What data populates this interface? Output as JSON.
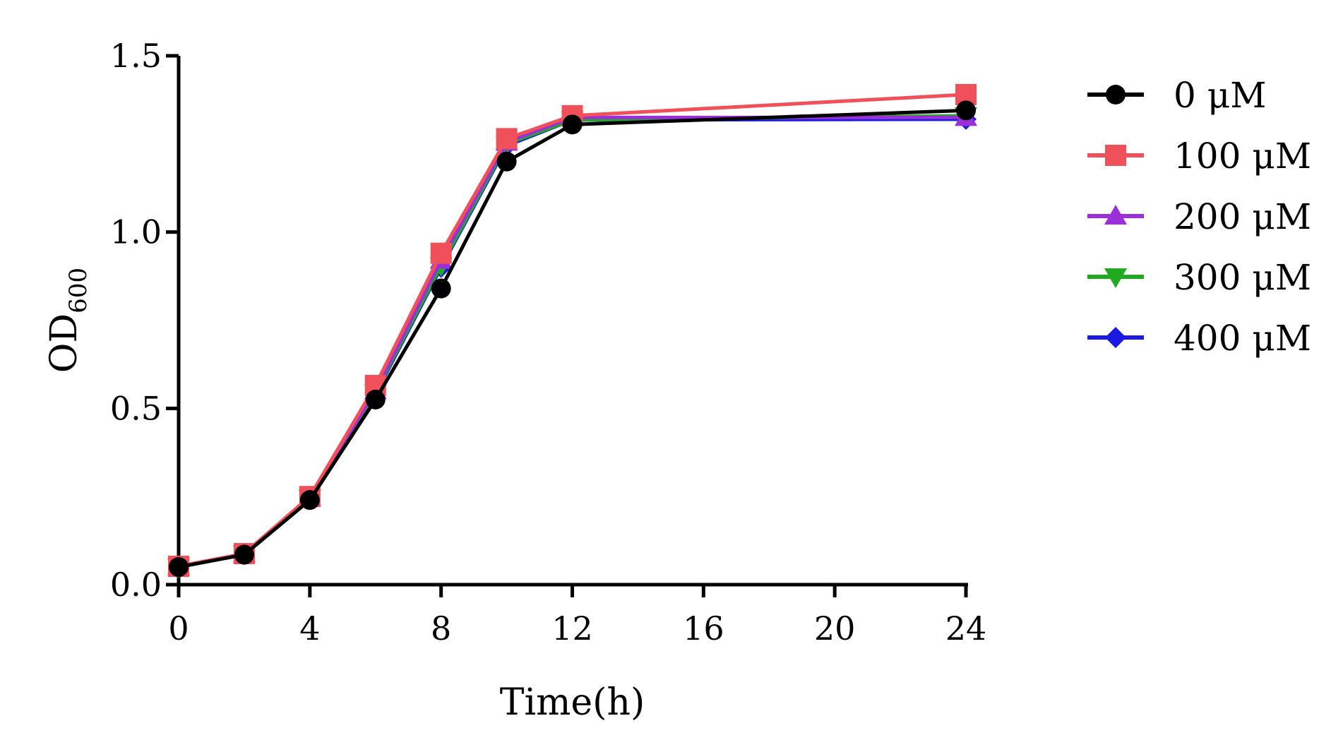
{
  "chart_data": {
    "type": "line",
    "xlabel": "Time(h)",
    "ylabel": {
      "main": "OD",
      "subscript": "600"
    },
    "xlim": [
      0,
      24
    ],
    "ylim": [
      0,
      1.5
    ],
    "xticks": [
      0,
      4,
      8,
      12,
      16,
      20,
      24
    ],
    "xtick_labels": [
      "0",
      "4",
      "8",
      "12",
      "16",
      "20",
      "24"
    ],
    "yticks": [
      0,
      0.5,
      1.0,
      1.5
    ],
    "ytick_labels": [
      "0.0",
      "0.5",
      "1.0",
      "1.5"
    ],
    "grid": false,
    "legend_position": "right",
    "x": [
      0,
      2,
      4,
      6,
      8,
      10,
      12,
      24
    ],
    "series": [
      {
        "name": "0 μM",
        "color": "#000000",
        "marker": "circle",
        "values": [
          0.05,
          0.085,
          0.24,
          0.525,
          0.84,
          1.2,
          1.305,
          1.345
        ]
      },
      {
        "name": "100 μM",
        "color": "#f0505a",
        "marker": "square",
        "values": [
          0.052,
          0.088,
          0.25,
          0.565,
          0.94,
          1.265,
          1.33,
          1.39
        ]
      },
      {
        "name": "200 μM",
        "color": "#9b30d9",
        "marker": "triangle-up",
        "values": [
          0.05,
          0.087,
          0.247,
          0.55,
          0.92,
          1.255,
          1.325,
          1.325
        ]
      },
      {
        "name": "300 μM",
        "color": "#1faa1f",
        "marker": "triangle-down",
        "values": [
          0.05,
          0.086,
          0.245,
          0.545,
          0.905,
          1.25,
          1.318,
          1.33
        ]
      },
      {
        "name": "400 μM",
        "color": "#1a1ae0",
        "marker": "diamond",
        "values": [
          0.05,
          0.086,
          0.244,
          0.54,
          0.9,
          1.245,
          1.318,
          1.32
        ]
      }
    ]
  }
}
